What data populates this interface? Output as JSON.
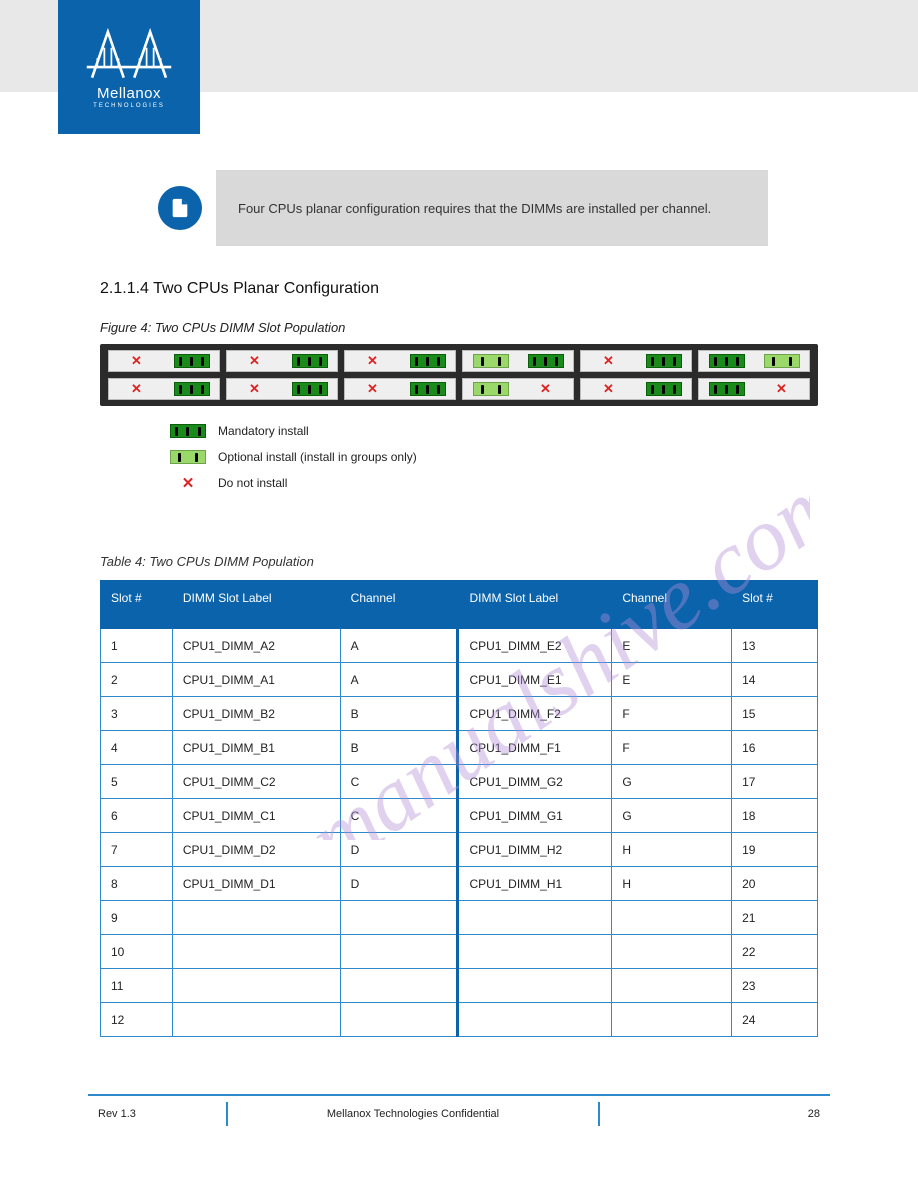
{
  "brand": {
    "name": "Mellanox",
    "sub": "TECHNOLOGIES"
  },
  "note": {
    "text": "Four CPUs planar configuration requires that the DIMMs are installed per channel."
  },
  "section": {
    "heading": "2.1.1.4   Two CPUs Planar Configuration"
  },
  "figure": {
    "caption": "Figure 4: Two CPUs DIMM Slot Population"
  },
  "legend": {
    "row1": "Mandatory install",
    "row2": "Optional install (install in groups only)",
    "row3": "Do not install"
  },
  "table_caption": "Table 4: Two CPUs DIMM Population",
  "headers": [
    "Slot #",
    "DIMM Slot Label",
    "Channel",
    "DIMM Slot Label",
    "Channel",
    "Slot #"
  ],
  "rows": [
    [
      "1",
      "CPU1_DIMM_A2",
      "A",
      "CPU1_DIMM_E2",
      "E",
      "13"
    ],
    [
      "2",
      "CPU1_DIMM_A1",
      "A",
      "CPU1_DIMM_E1",
      "E",
      "14"
    ],
    [
      "3",
      "CPU1_DIMM_B2",
      "B",
      "CPU1_DIMM_F2",
      "F",
      "15"
    ],
    [
      "4",
      "CPU1_DIMM_B1",
      "B",
      "CPU1_DIMM_F1",
      "F",
      "16"
    ],
    [
      "5",
      "CPU1_DIMM_C2",
      "C",
      "CPU1_DIMM_G2",
      "G",
      "17"
    ],
    [
      "6",
      "CPU1_DIMM_C1",
      "C",
      "CPU1_DIMM_G1",
      "G",
      "18"
    ],
    [
      "7",
      "CPU1_DIMM_D2",
      "D",
      "CPU1_DIMM_H2",
      "H",
      "19"
    ],
    [
      "8",
      "CPU1_DIMM_D1",
      "D",
      "CPU1_DIMM_H1",
      "H",
      "20"
    ],
    [
      "9",
      "",
      "",
      "",
      "",
      "21"
    ],
    [
      "10",
      "",
      "",
      "",
      "",
      "22"
    ],
    [
      "11",
      "",
      "",
      "",
      "",
      "23"
    ],
    [
      "12",
      "",
      "",
      "",
      "",
      "24"
    ]
  ],
  "panel": {
    "cards": [
      {
        "top": [
          "x",
          "g"
        ],
        "bot": [
          "x",
          "g"
        ]
      },
      {
        "top": [
          "x",
          "g"
        ],
        "bot": [
          "x",
          "g"
        ]
      },
      {
        "top": [
          "x",
          "g"
        ],
        "bot": [
          "x",
          "g"
        ]
      },
      {
        "top": [
          "lg",
          "g"
        ],
        "bot": [
          "lg",
          "x"
        ]
      },
      {
        "top": [
          "x",
          "g"
        ],
        "bot": [
          "x",
          "g"
        ]
      },
      {
        "top": [
          "g",
          "lg"
        ],
        "bot": [
          "g",
          "x"
        ]
      }
    ]
  },
  "footer": {
    "rev": "Rev 1.3",
    "title": "Mellanox Technologies Confidential",
    "page": "28"
  },
  "watermark_text": "manualshive.com",
  "colors": {
    "brand_blue": "#0a63ab",
    "border_blue": "#2f8acb",
    "chip_green": "#1a8a1a",
    "chip_lightgreen": "#9ad86a",
    "x_red": "#d22222",
    "panel_bg": "#2b2b2b",
    "note_bg": "#d9d9d9",
    "band_bg": "#e8e8e8"
  }
}
